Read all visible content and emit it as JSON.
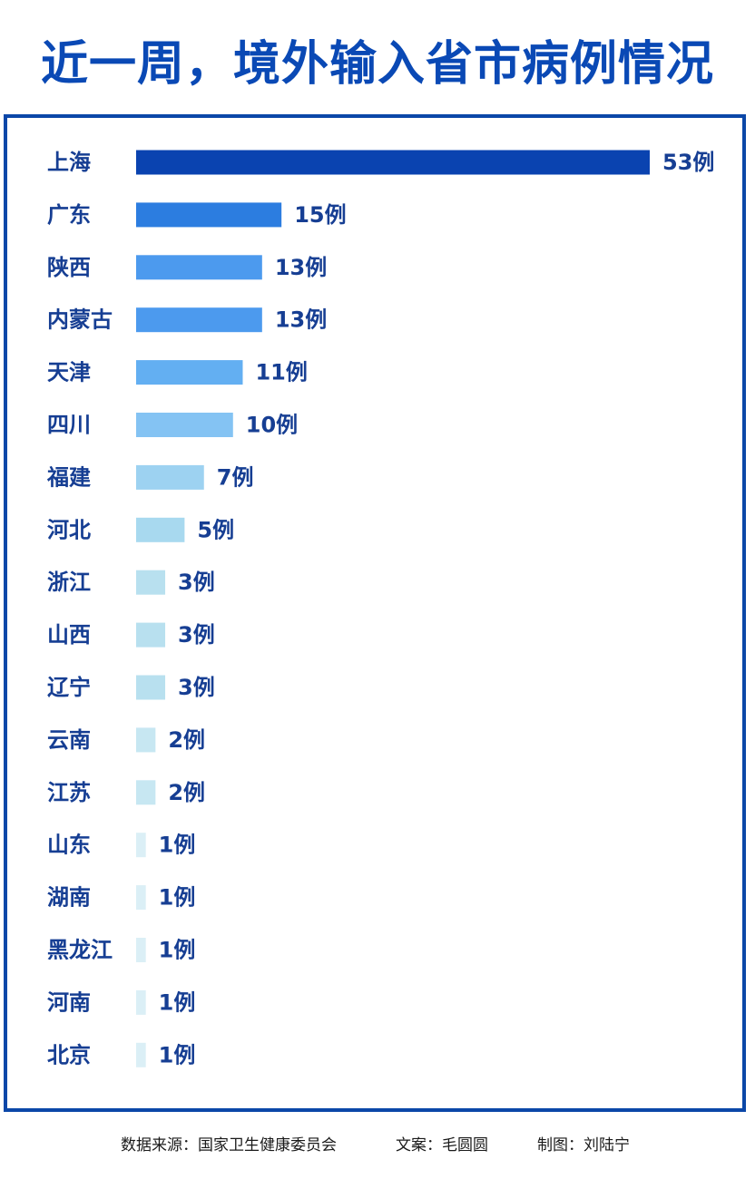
{
  "title": "近一周，境外输入省市病例情况",
  "footer": {
    "source": "数据来源：国家卫生健康委员会",
    "author": "文案：毛圆圆",
    "design": "制图：刘陆宁"
  },
  "colors": {
    "title": "#0a49b5",
    "frame": "#0b47a8",
    "label": "#163e93",
    "bar_scale": [
      "#0a43b0",
      "#2c7de0",
      "#4c9aee",
      "#4c9aee",
      "#63aff2",
      "#84c3f3",
      "#9dd2f1",
      "#a8d9ef",
      "#b8e0ef",
      "#b8e0ef",
      "#b8e0ef",
      "#c7e7f2",
      "#c7e7f2",
      "#dbeff6",
      "#dbeff6",
      "#dbeff6",
      "#dbeff6",
      "#dbeff6"
    ]
  },
  "chart_data": {
    "type": "bar",
    "orientation": "horizontal",
    "title": "近一周，境外输入省市病例情况",
    "unit_suffix": "例",
    "categories": [
      "上海",
      "广东",
      "陕西",
      "内蒙古",
      "天津",
      "四川",
      "福建",
      "河北",
      "浙江",
      "山西",
      "辽宁",
      "云南",
      "江苏",
      "山东",
      "湖南",
      "黑龙江",
      "河南",
      "北京"
    ],
    "values": [
      53,
      15,
      13,
      13,
      11,
      10,
      7,
      5,
      3,
      3,
      3,
      2,
      2,
      1,
      1,
      1,
      1,
      1
    ],
    "value_labels": [
      "53例",
      "15例",
      "13例",
      "13例",
      "11例",
      "10例",
      "7例",
      "5例",
      "3例",
      "3例",
      "3例",
      "2例",
      "2例",
      "1例",
      "1例",
      "1例",
      "1例",
      "1例"
    ],
    "xlabel": "",
    "ylabel": "",
    "xlim": [
      0,
      53
    ],
    "grid": false,
    "legend": "none"
  }
}
